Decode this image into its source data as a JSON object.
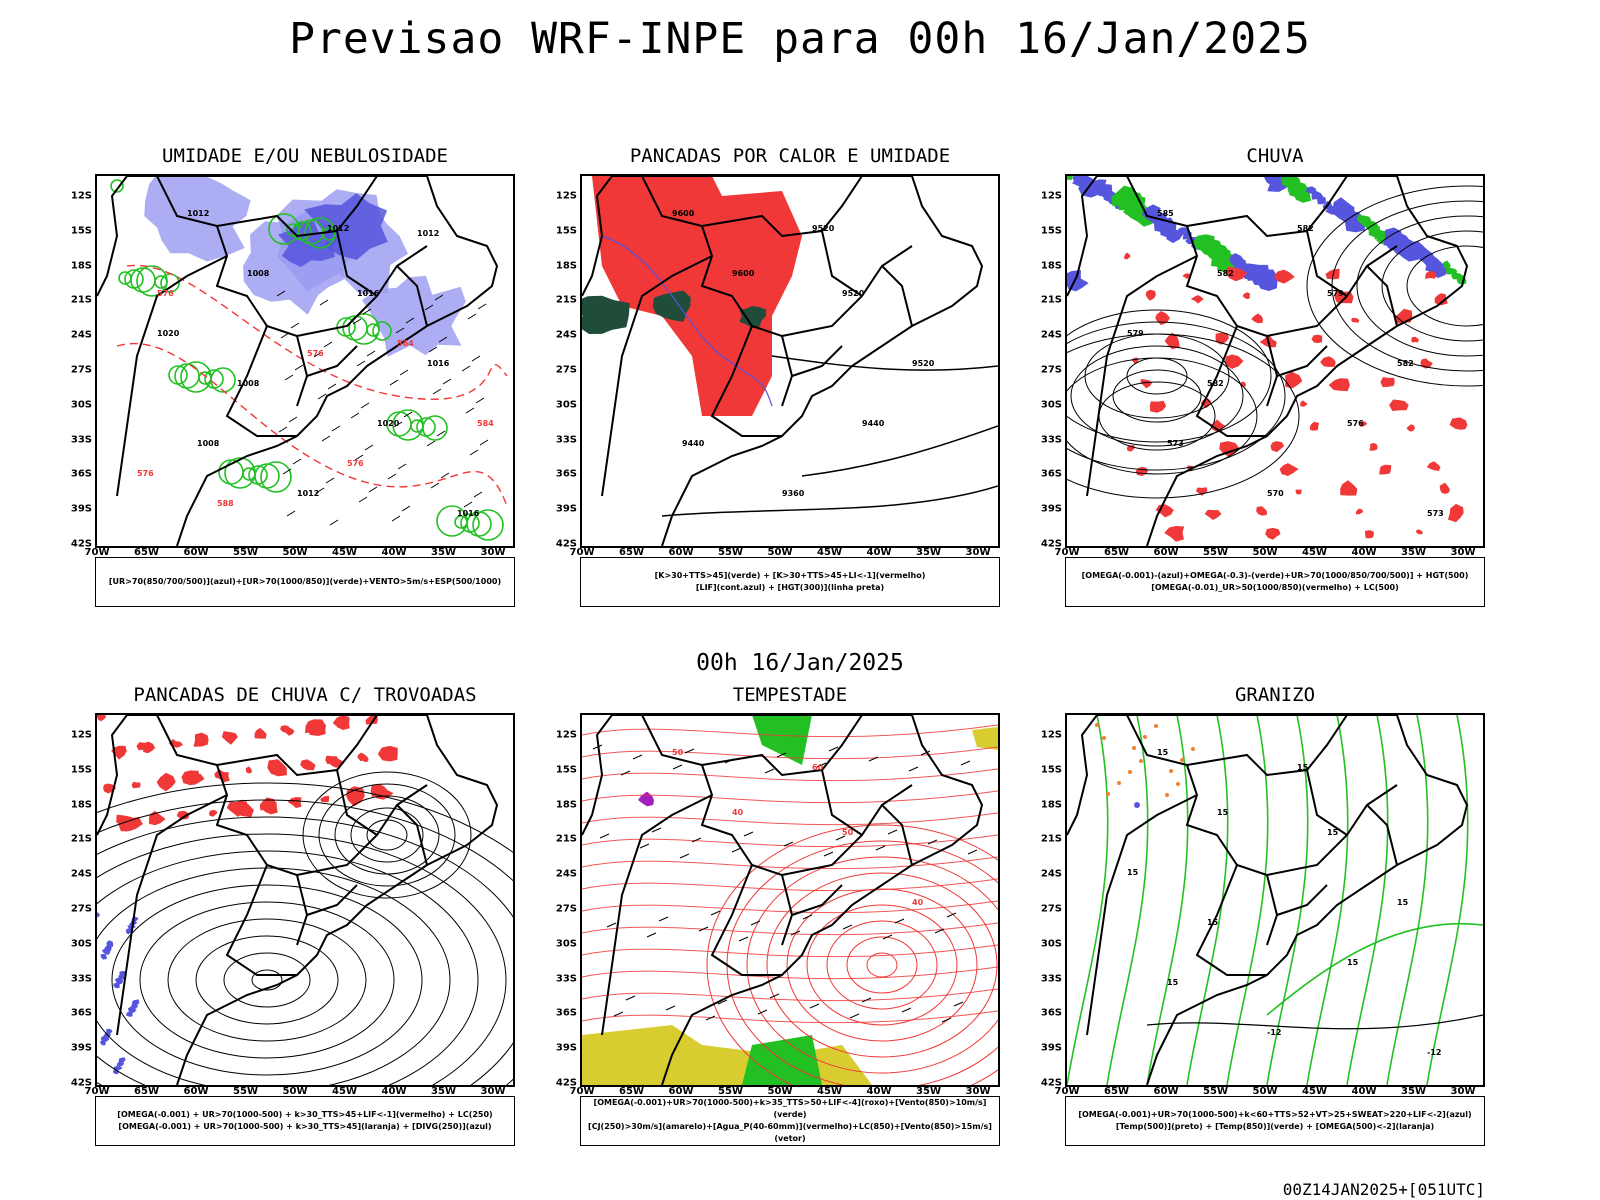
{
  "title": "Previsao WRF-INPE  para 00h 16/Jan/2025",
  "mid_time": "00h 16/Jan/2025",
  "footer": "00Z14JAN2025+[051UTC]",
  "lat_ticks": [
    "12S",
    "15S",
    "18S",
    "21S",
    "24S",
    "27S",
    "30S",
    "33S",
    "36S",
    "39S",
    "42S"
  ],
  "lon_ticks": [
    "70W",
    "65W",
    "60W",
    "55W",
    "50W",
    "45W",
    "40W",
    "35W",
    "30W"
  ],
  "panels": [
    {
      "title": "UMIDADE E/OU NEBULOSIDADE",
      "legend_lines": [
        "[UR>70(850/700/500)](azul)+[UR>70(1000/850)](verde)+VENTO>5m/s+ESP(500/1000)"
      ],
      "labels": [
        "1012",
        "1012",
        "1008",
        "1016",
        "1016",
        "1020",
        "1008",
        "1012",
        "1016",
        "1020",
        "1008",
        "1012",
        "576",
        "576",
        "564",
        "576",
        "588",
        "576",
        "584"
      ]
    },
    {
      "title": "PANCADAS POR CALOR E UMIDADE",
      "legend_lines": [
        "[K>30+TTS>45](verde) + [K>30+TTS>45+LI<-1](vermelho)",
        "[LIF](cont.azul) + [HGT(300)](linha preta)"
      ],
      "labels": [
        "9600",
        "9520",
        "9600",
        "9520",
        "9520",
        "9440",
        "9440",
        "9360"
      ]
    },
    {
      "title": "CHUVA",
      "legend_lines": [
        "[OMEGA(-0.001)-(azul)+OMEGA(-0.3)-(verde)+UR>70(1000/850/700/500)] + HGT(500)",
        "[OMEGA(-0.01)_UR>50(1000/850)(vermelho) + LC(500)"
      ],
      "labels": [
        "585",
        "582",
        "582",
        "579",
        "582",
        "576",
        "573",
        "570",
        "573",
        "579",
        "582"
      ]
    },
    {
      "title": "PANCADAS DE CHUVA C/ TROVOADAS",
      "legend_lines": [
        "[OMEGA(-0.001) + UR>70(1000-500) + k>30_TTS>45+LIF<-1](vermelho) + LC(250)",
        "[OMEGA(-0.001) + UR>70(1000-500) + k>30_TTS>45](laranja) + [DIVG(250)](azul)"
      ],
      "labels": []
    },
    {
      "title": "TEMPESTADE",
      "legend_lines": [
        "[OMEGA(-0.001)+UR>70(1000-500)+k>35_TTS>50+LIF<-4](roxo)+[Vento(850)>10m/s](verde)",
        "[CJ(250)>30m/s](amarelo)+[Agua_P(40-60mm)](vermelho)+LC(850)+[Vento(850)>15m/s](vetor)"
      ],
      "labels": [
        "50",
        "60",
        "40",
        "50",
        "40"
      ]
    },
    {
      "title": "GRANIZO",
      "legend_lines": [
        "[OMEGA(-0.001)+UR>70(1000-500)+k<60+TTS>52+VT>25+SWEAT>220+LIF<-2](azul)",
        "[Temp(500)](preto) + [Temp(850)](verde) + [OMEGA(500)<-2](laranja)"
      ],
      "labels": [
        "15",
        "15",
        "15",
        "15",
        "15",
        "15",
        "15",
        "-12",
        "-12",
        "15",
        "15"
      ]
    }
  ],
  "colors": {
    "blue": "#5555dd",
    "light_blue": "#9999f0",
    "green": "#22c022",
    "red": "#f03838",
    "dark_green": "#1f4d3a",
    "yellow": "#d8cc30",
    "purple": "#a020c0",
    "orange": "#f08030"
  }
}
